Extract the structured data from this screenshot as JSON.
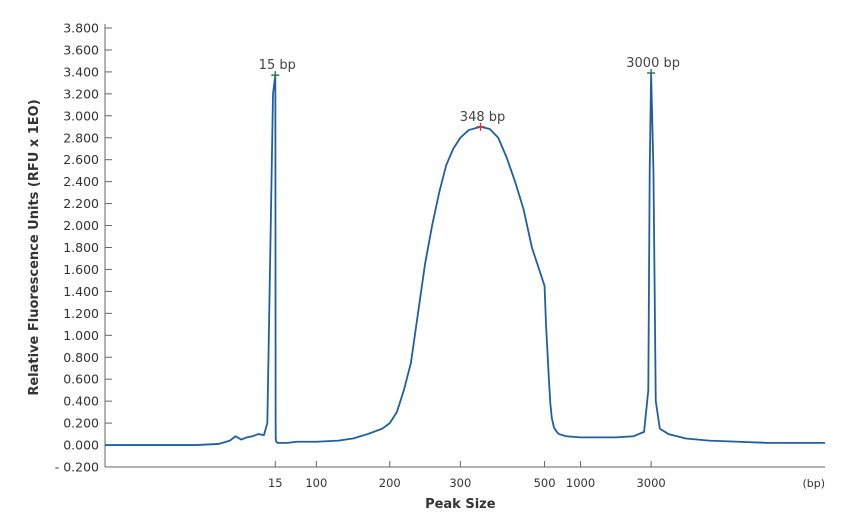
{
  "chart_data": {
    "type": "line",
    "title": "",
    "xlabel": "Peak Size",
    "xunit": "(bp)",
    "ylabel": "Relative Fluorescence Units (RFU x 1EO)",
    "ylim": [
      -0.2,
      3.8
    ],
    "yticks": [
      "3.800",
      "3.600",
      "3.400",
      "3.200",
      "3.000",
      "2.800",
      "2.600",
      "2.400",
      "2.200",
      "2.000",
      "1.800",
      "1.600",
      "1.400",
      "1.200",
      "1.000",
      "0.800",
      "0.600",
      "0.400",
      "0.200",
      "0.000",
      "- 0.200"
    ],
    "ytick_values": [
      3.8,
      3.6,
      3.4,
      3.2,
      3.0,
      2.8,
      2.6,
      2.4,
      2.2,
      2.0,
      1.8,
      1.6,
      1.4,
      1.2,
      1.0,
      0.8,
      0.6,
      0.4,
      0.2,
      0.0,
      -0.2
    ],
    "xticks": [
      "15",
      "100",
      "200",
      "300",
      "500",
      "1000",
      "3000"
    ],
    "xtick_values": [
      15,
      100,
      200,
      300,
      500,
      1000,
      3000
    ],
    "x_scale_knots": [
      [
        0,
        0.0
      ],
      [
        15,
        0.2365
      ],
      [
        100,
        0.2935
      ],
      [
        200,
        0.3955
      ],
      [
        300,
        0.4935
      ],
      [
        500,
        0.6105
      ],
      [
        1000,
        0.6605
      ],
      [
        3000,
        0.7585
      ],
      [
        6000,
        1.0
      ]
    ],
    "color": "#1f5fa0",
    "grid": false,
    "peaks": [
      {
        "label": "15 bp",
        "x": 15,
        "y": 3.37,
        "marker_color": "#2e7d4f"
      },
      {
        "label": "348 bp",
        "x": 348,
        "y": 2.9,
        "marker_color": "#d0344a"
      },
      {
        "label": "3000 bp",
        "x": 3000,
        "y": 3.39,
        "marker_color": "#2e7d4f"
      }
    ],
    "series": [
      {
        "values": [
          [
            0,
            0.0
          ],
          [
            3,
            0.0
          ],
          [
            6,
            0.0
          ],
          [
            8,
            0.0
          ],
          [
            10,
            0.01
          ],
          [
            11,
            0.04
          ],
          [
            11.5,
            0.08
          ],
          [
            12,
            0.05
          ],
          [
            12.5,
            0.07
          ],
          [
            13,
            0.08
          ],
          [
            13.5,
            0.1
          ],
          [
            14,
            0.09
          ],
          [
            14.3,
            0.2
          ],
          [
            14.6,
            2.0
          ],
          [
            14.8,
            3.2
          ],
          [
            15,
            3.37
          ],
          [
            15.2,
            3.2
          ],
          [
            15.4,
            2.0
          ],
          [
            15.7,
            0.2
          ],
          [
            16,
            0.06
          ],
          [
            17,
            0.03
          ],
          [
            20,
            0.02
          ],
          [
            40,
            0.02
          ],
          [
            60,
            0.03
          ],
          [
            80,
            0.03
          ],
          [
            100,
            0.03
          ],
          [
            130,
            0.04
          ],
          [
            150,
            0.06
          ],
          [
            170,
            0.1
          ],
          [
            190,
            0.15
          ],
          [
            200,
            0.2
          ],
          [
            210,
            0.3
          ],
          [
            220,
            0.5
          ],
          [
            230,
            0.75
          ],
          [
            240,
            1.2
          ],
          [
            250,
            1.65
          ],
          [
            260,
            2.0
          ],
          [
            270,
            2.3
          ],
          [
            280,
            2.55
          ],
          [
            290,
            2.7
          ],
          [
            300,
            2.8
          ],
          [
            320,
            2.87
          ],
          [
            348,
            2.9
          ],
          [
            370,
            2.88
          ],
          [
            390,
            2.8
          ],
          [
            410,
            2.62
          ],
          [
            430,
            2.4
          ],
          [
            450,
            2.15
          ],
          [
            470,
            1.8
          ],
          [
            500,
            1.45
          ],
          [
            520,
            1.1
          ],
          [
            540,
            0.85
          ],
          [
            560,
            0.6
          ],
          [
            580,
            0.38
          ],
          [
            600,
            0.25
          ],
          [
            630,
            0.16
          ],
          [
            670,
            0.12
          ],
          [
            700,
            0.1
          ],
          [
            800,
            0.08
          ],
          [
            1000,
            0.07
          ],
          [
            1500,
            0.07
          ],
          [
            2000,
            0.07
          ],
          [
            2500,
            0.08
          ],
          [
            2800,
            0.12
          ],
          [
            2920,
            0.5
          ],
          [
            2960,
            2.5
          ],
          [
            3000,
            3.39
          ],
          [
            3040,
            2.5
          ],
          [
            3080,
            0.4
          ],
          [
            3150,
            0.15
          ],
          [
            3300,
            0.1
          ],
          [
            3600,
            0.06
          ],
          [
            4000,
            0.04
          ],
          [
            4500,
            0.03
          ],
          [
            5000,
            0.02
          ],
          [
            5500,
            0.02
          ],
          [
            6000,
            0.02
          ]
        ]
      }
    ]
  }
}
